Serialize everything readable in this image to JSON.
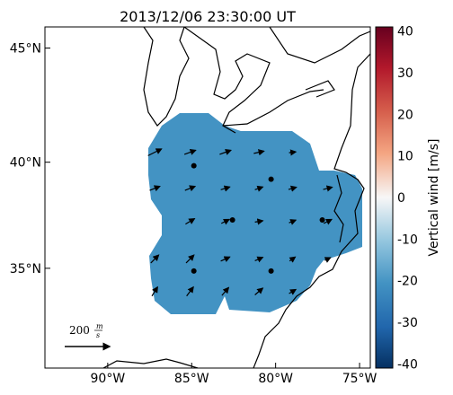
{
  "title": "2013/12/06 23:30:00 UT",
  "map": {
    "xlim": [
      -93.74,
      -74.36
    ],
    "ylim": [
      30.0,
      45.88
    ],
    "xticks": [
      {
        "value": -90,
        "label": "90°W"
      },
      {
        "value": -85,
        "label": "85°W"
      },
      {
        "value": -80,
        "label": "80°W"
      },
      {
        "value": -75,
        "label": "75°W"
      }
    ],
    "yticks": [
      {
        "value": 35,
        "label": "35°N"
      },
      {
        "value": 40,
        "label": "40°N"
      },
      {
        "value": 45,
        "label": "45°N"
      }
    ]
  },
  "colorbar": {
    "label": "Vertical wind [m/s]",
    "lim": [
      -41,
      41
    ],
    "ticks": [
      -40,
      -30,
      -20,
      -10,
      0,
      10,
      20,
      30,
      40
    ]
  },
  "reference": {
    "value": 200,
    "unit_top": "m",
    "unit_bottom": "s"
  },
  "stations": {
    "lon": [
      -84.87,
      -80.27,
      -82.57,
      -77.22,
      -84.87,
      -80.27
    ],
    "lat": [
      39.84,
      39.22,
      37.32,
      37.32,
      34.87,
      34.87
    ]
  },
  "vectors": {
    "lon": [
      -87.2,
      -85.1,
      -83.0,
      -81.0,
      -79.0,
      -87.2,
      -85.1,
      -83.0,
      -81.0,
      -79.0,
      -76.9,
      -85.1,
      -83.0,
      -81.0,
      -79.0,
      -76.9,
      -87.2,
      -85.1,
      -83.0,
      -81.0,
      -79.0,
      -76.9,
      -87.2,
      -85.1,
      -83.0,
      -81.0,
      -79.0
    ],
    "lat": [
      40.45,
      40.45,
      40.45,
      40.45,
      40.45,
      38.8,
      38.8,
      38.8,
      38.8,
      38.8,
      38.8,
      37.25,
      37.25,
      37.25,
      37.25,
      37.25,
      35.45,
      35.45,
      35.45,
      35.45,
      35.45,
      35.45,
      33.86,
      33.86,
      33.86,
      33.86,
      33.86
    ],
    "u": [
      60,
      50,
      50,
      45,
      30,
      45,
      45,
      40,
      35,
      35,
      40,
      40,
      35,
      35,
      30,
      35,
      35,
      35,
      40,
      35,
      25,
      25,
      25,
      30,
      30,
      35,
      30
    ],
    "v": [
      30,
      18,
      18,
      10,
      4,
      18,
      18,
      12,
      12,
      10,
      10,
      24,
      18,
      6,
      12,
      18,
      35,
      35,
      18,
      15,
      18,
      12,
      40,
      40,
      35,
      30,
      18
    ]
  }
}
